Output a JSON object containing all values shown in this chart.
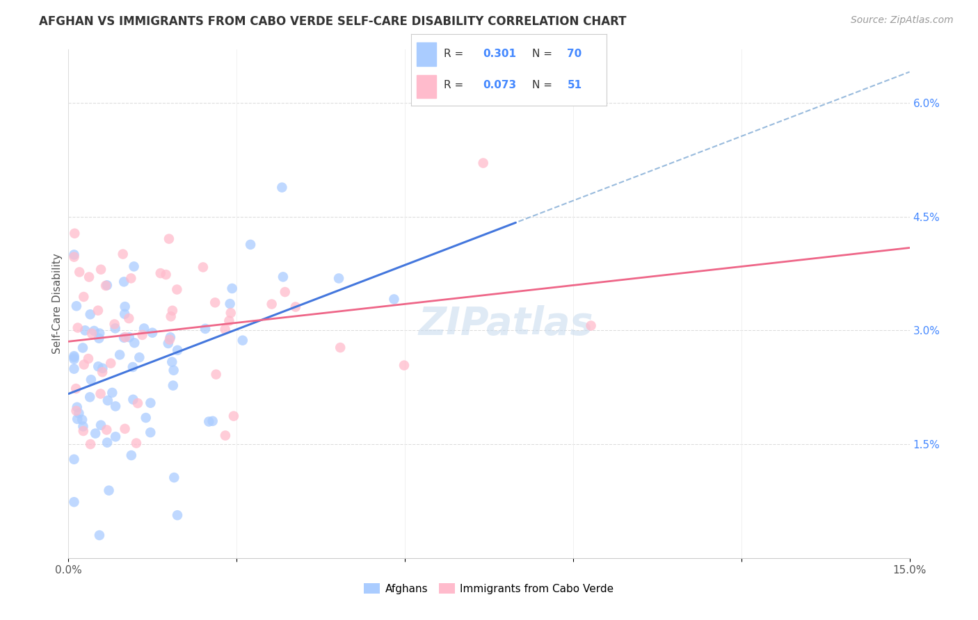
{
  "title": "AFGHAN VS IMMIGRANTS FROM CABO VERDE SELF-CARE DISABILITY CORRELATION CHART",
  "source": "Source: ZipAtlas.com",
  "ylabel": "Self-Care Disability",
  "xlim": [
    0.0,
    0.15
  ],
  "ylim": [
    0.0,
    0.067
  ],
  "yticks_right": [
    0.015,
    0.03,
    0.045,
    0.06
  ],
  "ytick_labels_right": [
    "1.5%",
    "3.0%",
    "4.5%",
    "6.0%"
  ],
  "afghan_color": "#aaccff",
  "cabo_verde_color": "#ffbbcc",
  "afghan_line_color": "#4477dd",
  "cabo_verde_line_color": "#ee6688",
  "trend_extend_color": "#99bbdd",
  "watermark": "ZIPatlas",
  "afghan_R": 0.301,
  "afghan_N": 70,
  "cabo_verde_R": 0.073,
  "cabo_verde_N": 51,
  "afghan_seed": 1234,
  "cabo_seed": 5678,
  "title_fontsize": 12,
  "source_fontsize": 10,
  "tick_fontsize": 11,
  "right_tick_color": "#4488ff"
}
